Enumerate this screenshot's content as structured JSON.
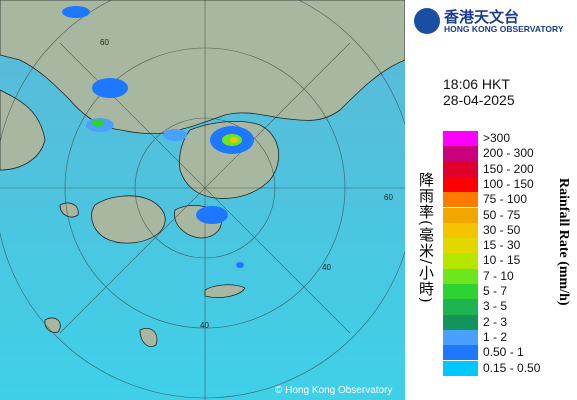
{
  "logo": {
    "chinese": "香港天文台",
    "english": "HONG KONG OBSERVATORY"
  },
  "time": "18:06 HKT",
  "date": "28-04-2025",
  "legend": {
    "title_chinese": "降雨率(毫米/小時)",
    "title_english": "Rainfall Rate (mm/h)",
    "items": [
      {
        "label": ">300",
        "color": "#ff00ff"
      },
      {
        "label": "200 - 300",
        "color": "#c8007c"
      },
      {
        "label": "150 - 200",
        "color": "#e0002c"
      },
      {
        "label": "100 - 150",
        "color": "#ff0000"
      },
      {
        "label": "75 - 100",
        "color": "#ff7a00"
      },
      {
        "label": "50 - 75",
        "color": "#f0a800"
      },
      {
        "label": "30 - 50",
        "color": "#f5c400"
      },
      {
        "label": "15 - 30",
        "color": "#e2d800"
      },
      {
        "label": "10 - 15",
        "color": "#b4e600"
      },
      {
        "label": "7 - 10",
        "color": "#6ee61e"
      },
      {
        "label": "5 - 7",
        "color": "#2ed232"
      },
      {
        "label": "3 - 5",
        "color": "#1eb450"
      },
      {
        "label": "2 - 3",
        "color": "#12945a"
      },
      {
        "label": "1 - 2",
        "color": "#4aa0ff"
      },
      {
        "label": "0.50 - 1",
        "color": "#1e78ff"
      },
      {
        "label": "0.15 - 0.50",
        "color": "#00c8ff"
      }
    ]
  },
  "map": {
    "ring_labels": [
      "60",
      "60",
      "40",
      "40"
    ],
    "copyright": "© Hong Kong Observatory"
  }
}
